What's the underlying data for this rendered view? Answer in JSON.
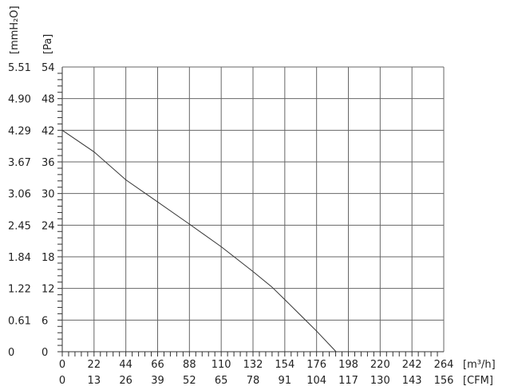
{
  "chart_data": {
    "type": "line",
    "x_unit_label": "[m³/h]",
    "x2_unit_label": "[CFM]",
    "y_unit_label": "[Pa]",
    "y2_unit_label": "[mmH₂O]",
    "xlim": [
      0,
      264
    ],
    "ylim": [
      0,
      54
    ],
    "x_ticks": [
      0,
      22,
      44,
      66,
      88,
      110,
      132,
      154,
      176,
      198,
      220,
      242,
      264
    ],
    "x2_ticks": [
      "0",
      "13",
      "26",
      "39",
      "52",
      "65",
      "78",
      "91",
      "104",
      "117",
      "130",
      "143",
      "156"
    ],
    "y_ticks": [
      0,
      6,
      12,
      18,
      24,
      30,
      36,
      42,
      48,
      54
    ],
    "y2_ticks": [
      "0",
      "0.61",
      "1.22",
      "1.84",
      "2.45",
      "3.06",
      "3.67",
      "4.29",
      "4.90",
      "5.51"
    ],
    "grid": true,
    "series": [
      {
        "x": [
          0,
          22,
          44,
          66,
          88,
          110,
          132,
          145,
          154,
          176,
          189.5
        ],
        "y": [
          42,
          37.9,
          32.6,
          28.4,
          24.2,
          19.9,
          15.2,
          12.3,
          9.9,
          3.9,
          0
        ]
      }
    ],
    "colors": {
      "line": "#333333",
      "grid": "#555555"
    }
  }
}
